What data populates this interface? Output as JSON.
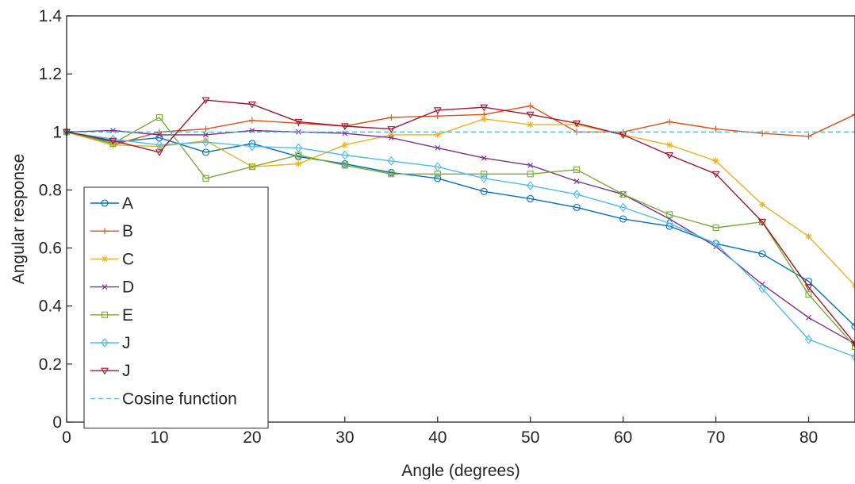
{
  "chart_data": {
    "type": "line",
    "title": "",
    "xlabel": "Angle (degrees)",
    "ylabel": "Angular response",
    "xlim": [
      0,
      85
    ],
    "ylim": [
      0,
      1.4
    ],
    "x_ticks": [
      "0",
      "10",
      "20",
      "30",
      "40",
      "50",
      "60",
      "70",
      "80"
    ],
    "y_ticks": [
      "0",
      "0.2",
      "0.4",
      "0.6",
      "0.8",
      "1",
      "1.2",
      "1.4"
    ],
    "grid": false,
    "legend_position": "left",
    "x": [
      0,
      5,
      10,
      15,
      20,
      25,
      30,
      35,
      40,
      45,
      50,
      55,
      60,
      65,
      70,
      75,
      80,
      85
    ],
    "series": [
      {
        "name": "A",
        "color": "#0072BD",
        "marker": "circle",
        "values": [
          1.0,
          0.965,
          0.98,
          0.93,
          0.96,
          0.915,
          0.89,
          0.86,
          0.84,
          0.795,
          0.77,
          0.74,
          0.7,
          0.675,
          0.615,
          0.58,
          0.485,
          0.33
        ]
      },
      {
        "name": "B",
        "color": "#D95319",
        "marker": "plus",
        "values": [
          1.0,
          0.955,
          1.0,
          1.01,
          1.04,
          1.03,
          1.02,
          1.05,
          1.055,
          1.06,
          1.09,
          1.0,
          1.0,
          1.035,
          1.01,
          0.995,
          0.985,
          1.06
        ]
      },
      {
        "name": "C",
        "color": "#EDB120",
        "marker": "asterisk",
        "values": [
          1.0,
          0.955,
          0.95,
          0.97,
          0.88,
          0.89,
          0.955,
          0.99,
          0.99,
          1.045,
          1.025,
          1.025,
          0.99,
          0.955,
          0.9,
          0.75,
          0.64,
          0.47
        ]
      },
      {
        "name": "D",
        "color": "#7E2F8E",
        "marker": "cross",
        "values": [
          1.0,
          1.005,
          0.99,
          0.99,
          1.005,
          1.0,
          0.995,
          0.98,
          0.945,
          0.91,
          0.885,
          0.83,
          0.785,
          0.7,
          0.605,
          0.475,
          0.36,
          0.27
        ]
      },
      {
        "name": "E",
        "color": "#77AC30",
        "marker": "square",
        "values": [
          1.0,
          0.96,
          1.05,
          0.84,
          0.88,
          0.92,
          0.885,
          0.855,
          0.855,
          0.855,
          0.855,
          0.87,
          0.785,
          0.715,
          0.67,
          0.69,
          0.44,
          0.26
        ]
      },
      {
        "name": "J",
        "color": "#4DBEEE",
        "marker": "diamond",
        "values": [
          1.0,
          0.975,
          0.955,
          0.965,
          0.95,
          0.945,
          0.92,
          0.9,
          0.88,
          0.84,
          0.815,
          0.785,
          0.74,
          0.685,
          0.615,
          0.46,
          0.285,
          0.225
        ]
      },
      {
        "name": "J",
        "color": "#A2142F",
        "marker": "triangle-down",
        "values": [
          1.0,
          0.97,
          0.93,
          1.11,
          1.095,
          1.035,
          1.02,
          1.01,
          1.075,
          1.085,
          1.06,
          1.03,
          0.99,
          0.92,
          0.855,
          0.69,
          0.465,
          0.27
        ]
      },
      {
        "name": "Cosine function",
        "color": "#4DBEEE",
        "marker": "none",
        "dashed": true,
        "values": [
          1,
          1,
          1,
          1,
          1,
          1,
          1,
          1,
          1,
          1,
          1,
          1,
          1,
          1,
          1,
          1,
          1,
          1
        ]
      }
    ]
  }
}
